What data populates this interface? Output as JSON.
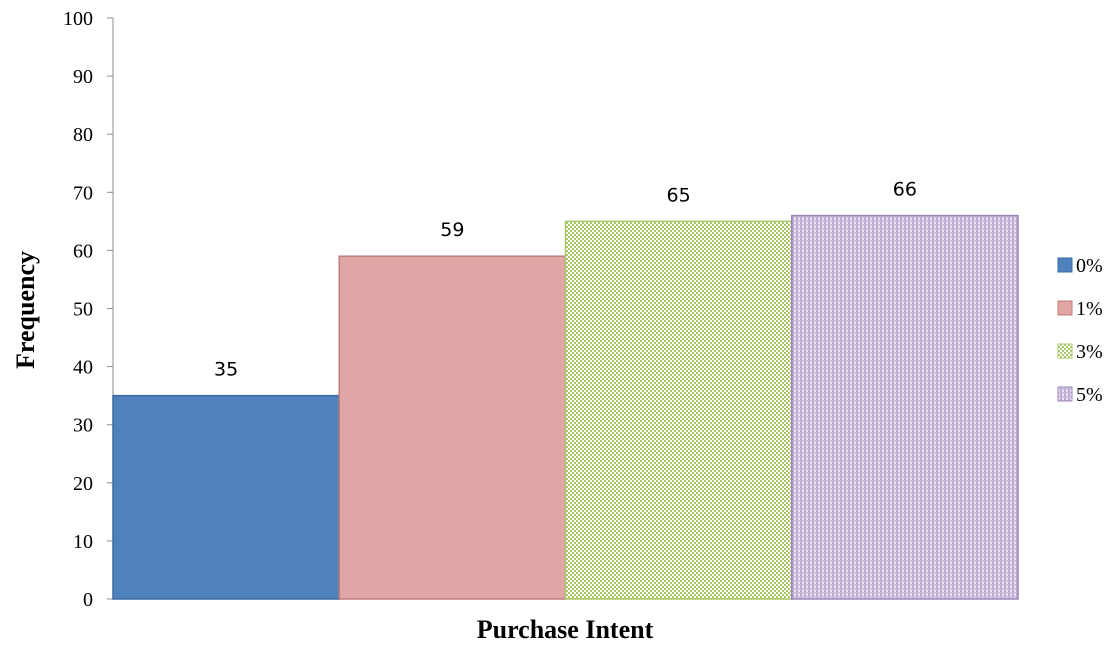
{
  "chart_data": {
    "type": "bar",
    "title": "",
    "xlabel": "Purchase Intent",
    "ylabel": "Frequency",
    "ylim": [
      0,
      100
    ],
    "yticks": [
      0,
      10,
      20,
      30,
      40,
      50,
      60,
      70,
      80,
      90,
      100
    ],
    "grid": false,
    "legend_position": "right",
    "series": [
      {
        "name": "0%",
        "values": [
          35
        ],
        "color": "#4f81bd",
        "pattern": "solid"
      },
      {
        "name": "1%",
        "values": [
          59
        ],
        "color": "#e0a6a6",
        "pattern": "solid"
      },
      {
        "name": "3%",
        "values": [
          65
        ],
        "color": "#9bbb59",
        "pattern": "checker"
      },
      {
        "name": "5%",
        "values": [
          66
        ],
        "color": "#8064a2",
        "pattern": "grid"
      }
    ]
  }
}
